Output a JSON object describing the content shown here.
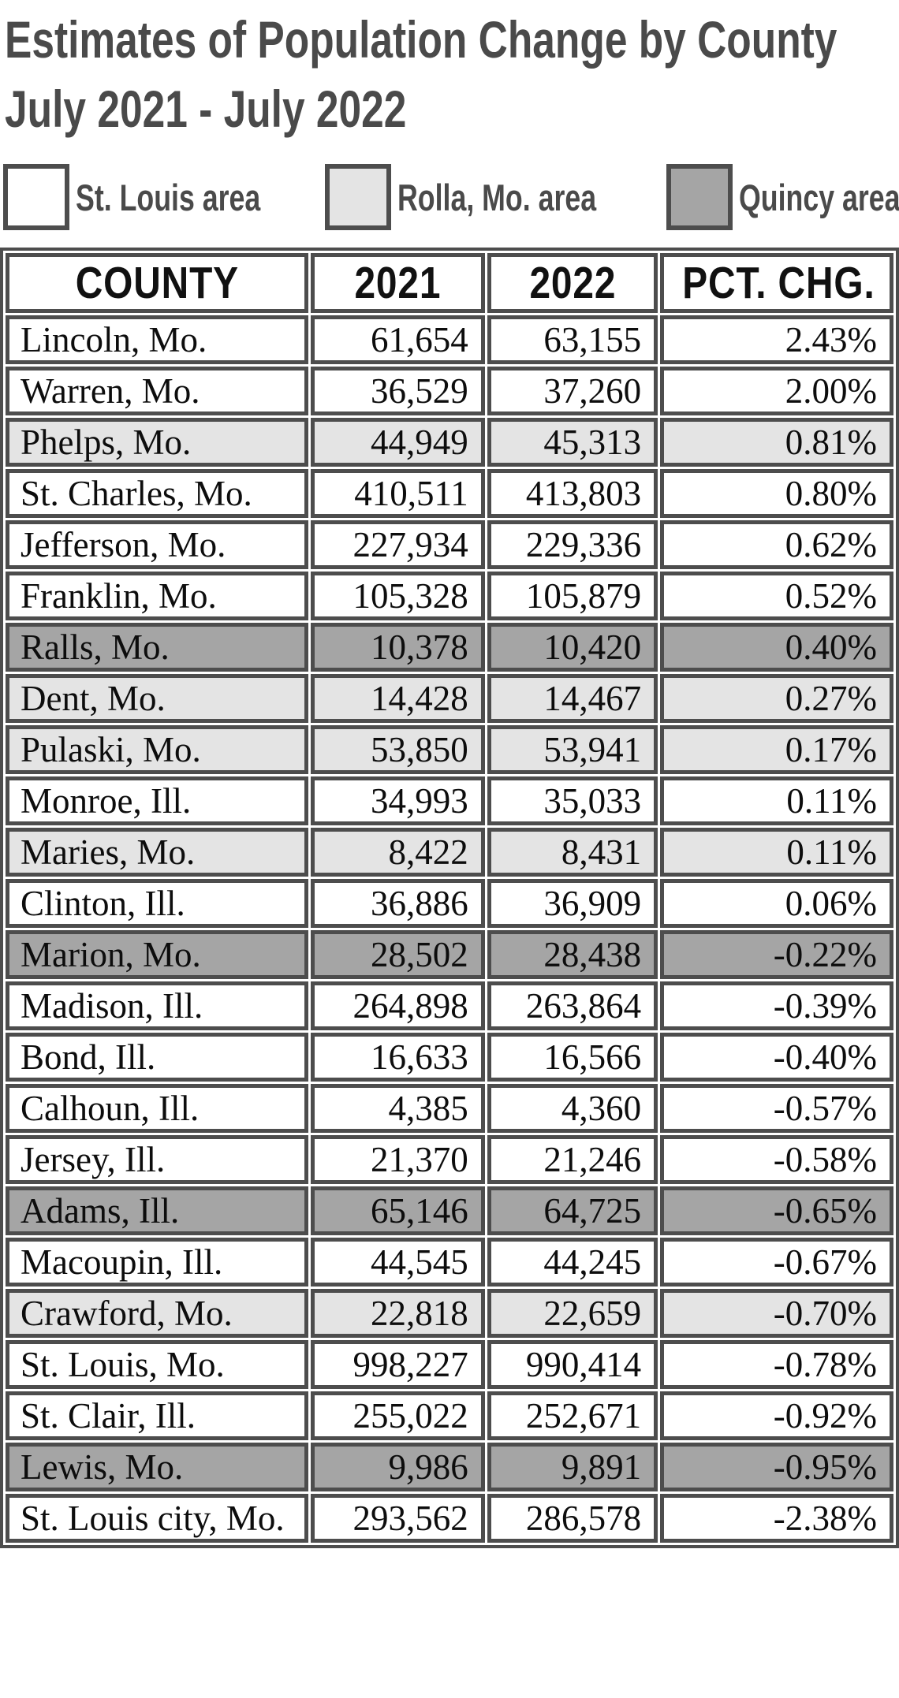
{
  "title": {
    "line1": "Estimates of Population Change by County",
    "line2": "July 2021 - July 2022"
  },
  "legend": [
    {
      "label": "St. Louis area",
      "area": "stl",
      "swatch": "#ffffff"
    },
    {
      "label": "Rolla, Mo. area",
      "area": "rolla",
      "swatch": "#e4e4e4"
    },
    {
      "label": "Quincy area",
      "area": "quincy",
      "swatch": "#a5a5a5"
    }
  ],
  "colors": {
    "border": "#4d4d4d",
    "title_text": "#4a4a4a",
    "row_st_louis": "#ffffff",
    "row_rolla": "#e4e4e4",
    "row_quincy": "#a5a5a5"
  },
  "table": {
    "headers": [
      "COUNTY",
      "2021",
      "2022",
      "PCT. CHG."
    ],
    "rows": [
      {
        "county": "Lincoln, Mo.",
        "y2021": "61,654",
        "y2022": "63,155",
        "pct": "2.43%",
        "area": "stl"
      },
      {
        "county": "Warren, Mo.",
        "y2021": "36,529",
        "y2022": "37,260",
        "pct": "2.00%",
        "area": "stl"
      },
      {
        "county": "Phelps, Mo.",
        "y2021": "44,949",
        "y2022": "45,313",
        "pct": "0.81%",
        "area": "rolla"
      },
      {
        "county": "St. Charles, Mo.",
        "y2021": "410,511",
        "y2022": "413,803",
        "pct": "0.80%",
        "area": "stl"
      },
      {
        "county": "Jefferson, Mo.",
        "y2021": "227,934",
        "y2022": "229,336",
        "pct": "0.62%",
        "area": "stl"
      },
      {
        "county": "Franklin, Mo.",
        "y2021": "105,328",
        "y2022": "105,879",
        "pct": "0.52%",
        "area": "stl"
      },
      {
        "county": "Ralls, Mo.",
        "y2021": "10,378",
        "y2022": "10,420",
        "pct": "0.40%",
        "area": "quincy"
      },
      {
        "county": "Dent, Mo.",
        "y2021": "14,428",
        "y2022": "14,467",
        "pct": "0.27%",
        "area": "rolla"
      },
      {
        "county": "Pulaski, Mo.",
        "y2021": "53,850",
        "y2022": "53,941",
        "pct": "0.17%",
        "area": "rolla"
      },
      {
        "county": "Monroe, Ill.",
        "y2021": "34,993",
        "y2022": "35,033",
        "pct": "0.11%",
        "area": "stl"
      },
      {
        "county": "Maries, Mo.",
        "y2021": "8,422",
        "y2022": "8,431",
        "pct": "0.11%",
        "area": "rolla"
      },
      {
        "county": "Clinton, Ill.",
        "y2021": "36,886",
        "y2022": "36,909",
        "pct": "0.06%",
        "area": "stl"
      },
      {
        "county": "Marion, Mo.",
        "y2021": "28,502",
        "y2022": "28,438",
        "pct": "-0.22%",
        "area": "quincy"
      },
      {
        "county": "Madison, Ill.",
        "y2021": "264,898",
        "y2022": "263,864",
        "pct": "-0.39%",
        "area": "stl"
      },
      {
        "county": "Bond, Ill.",
        "y2021": "16,633",
        "y2022": "16,566",
        "pct": "-0.40%",
        "area": "stl"
      },
      {
        "county": "Calhoun, Ill.",
        "y2021": "4,385",
        "y2022": "4,360",
        "pct": "-0.57%",
        "area": "stl"
      },
      {
        "county": "Jersey, Ill.",
        "y2021": "21,370",
        "y2022": "21,246",
        "pct": "-0.58%",
        "area": "stl"
      },
      {
        "county": "Adams, Ill.",
        "y2021": "65,146",
        "y2022": "64,725",
        "pct": "-0.65%",
        "area": "quincy"
      },
      {
        "county": "Macoupin, Ill.",
        "y2021": "44,545",
        "y2022": "44,245",
        "pct": "-0.67%",
        "area": "stl"
      },
      {
        "county": "Crawford, Mo.",
        "y2021": "22,818",
        "y2022": "22,659",
        "pct": "-0.70%",
        "area": "rolla"
      },
      {
        "county": "St. Louis, Mo.",
        "y2021": "998,227",
        "y2022": "990,414",
        "pct": "-0.78%",
        "area": "stl"
      },
      {
        "county": "St. Clair, Ill.",
        "y2021": "255,022",
        "y2022": "252,671",
        "pct": "-0.92%",
        "area": "stl"
      },
      {
        "county": "Lewis, Mo.",
        "y2021": "9,986",
        "y2022": "9,891",
        "pct": "-0.95%",
        "area": "quincy"
      },
      {
        "county": "St. Louis city, Mo.",
        "y2021": "293,562",
        "y2022": "286,578",
        "pct": "-2.38%",
        "area": "stl"
      }
    ]
  },
  "chart_data": {
    "type": "table",
    "title": "Estimates of Population Change by County July 2021 - July 2022",
    "columns": [
      "COUNTY",
      "2021",
      "2022",
      "PCT. CHG."
    ],
    "legend": [
      "St. Louis area",
      "Rolla, Mo. area",
      "Quincy area"
    ],
    "categories": [
      "Lincoln, Mo.",
      "Warren, Mo.",
      "Phelps, Mo.",
      "St. Charles, Mo.",
      "Jefferson, Mo.",
      "Franklin, Mo.",
      "Ralls, Mo.",
      "Dent, Mo.",
      "Pulaski, Mo.",
      "Monroe, Ill.",
      "Maries, Mo.",
      "Clinton, Ill.",
      "Marion, Mo.",
      "Madison, Ill.",
      "Bond, Ill.",
      "Calhoun, Ill.",
      "Jersey, Ill.",
      "Adams, Ill.",
      "Macoupin, Ill.",
      "Crawford, Mo.",
      "St. Louis, Mo.",
      "St. Clair, Ill.",
      "Lewis, Mo.",
      "St. Louis city, Mo."
    ],
    "series": [
      {
        "name": "2021",
        "values": [
          61654,
          36529,
          44949,
          410511,
          227934,
          105328,
          10378,
          14428,
          53850,
          34993,
          8422,
          36886,
          28502,
          264898,
          16633,
          4385,
          21370,
          65146,
          44545,
          22818,
          998227,
          255022,
          9986,
          293562
        ]
      },
      {
        "name": "2022",
        "values": [
          63155,
          37260,
          45313,
          413803,
          229336,
          105879,
          10420,
          14467,
          53941,
          35033,
          8431,
          36909,
          28438,
          263864,
          16566,
          4360,
          21246,
          64725,
          44245,
          22659,
          990414,
          252671,
          9891,
          286578
        ]
      },
      {
        "name": "PCT. CHG.",
        "values": [
          2.43,
          2.0,
          0.81,
          0.8,
          0.62,
          0.52,
          0.4,
          0.27,
          0.17,
          0.11,
          0.11,
          0.06,
          -0.22,
          -0.39,
          -0.4,
          -0.57,
          -0.58,
          -0.65,
          -0.67,
          -0.7,
          -0.78,
          -0.92,
          -0.95,
          -2.38
        ]
      },
      {
        "name": "area",
        "values": [
          "St. Louis",
          "St. Louis",
          "Rolla",
          "St. Louis",
          "St. Louis",
          "St. Louis",
          "Quincy",
          "Rolla",
          "Rolla",
          "St. Louis",
          "Rolla",
          "St. Louis",
          "Quincy",
          "St. Louis",
          "St. Louis",
          "St. Louis",
          "St. Louis",
          "Quincy",
          "St. Louis",
          "Rolla",
          "St. Louis",
          "St. Louis",
          "Quincy",
          "St. Louis"
        ]
      }
    ]
  }
}
